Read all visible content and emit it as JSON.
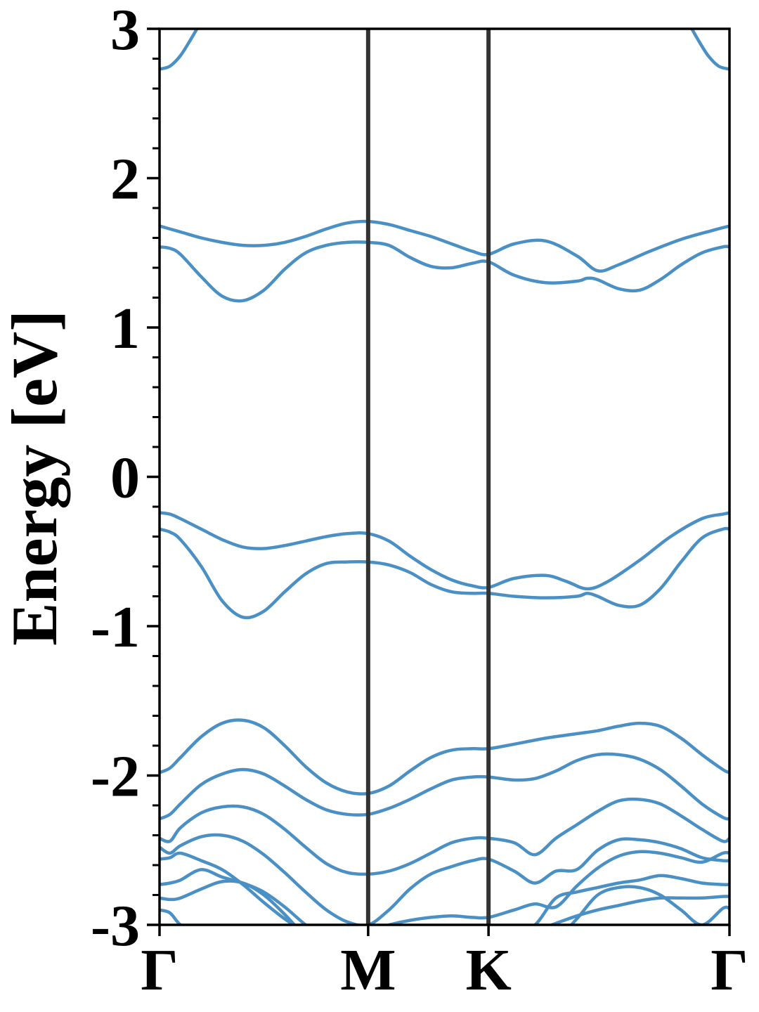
{
  "chart_data": {
    "type": "line",
    "title": "",
    "xlabel": "",
    "ylabel": "Energy [eV]",
    "ylim": [
      -3,
      3
    ],
    "yticks": [
      {
        "value": 3,
        "label": "3"
      },
      {
        "value": 2,
        "label": "2"
      },
      {
        "value": 1,
        "label": "1"
      },
      {
        "value": 0,
        "label": "0"
      },
      {
        "value": -1,
        "label": "-1"
      },
      {
        "value": -2,
        "label": "-2"
      },
      {
        "value": -3,
        "label": "-3"
      }
    ],
    "yminor_step": 0.2,
    "kpath": [
      {
        "label": "Γ",
        "k": 0.0
      },
      {
        "label": "M",
        "k": 1.0
      },
      {
        "label": "K",
        "k": 1.577
      },
      {
        "label": "Γ",
        "k": 2.732
      }
    ],
    "xlim": [
      0,
      2.732
    ],
    "line_color": "#4a90c4",
    "divider_color": "#333333",
    "grid": false,
    "legend": false,
    "series": [
      {
        "x": [
          0,
          0.1,
          0.2,
          0.3,
          0.4,
          0.5,
          0.6,
          0.7,
          0.8,
          0.9,
          1.0,
          1.1,
          1.2,
          1.3,
          1.4,
          1.5,
          1.577,
          1.7,
          1.85,
          2.0,
          2.1,
          2.2,
          2.35,
          2.5,
          2.65,
          2.732
        ],
        "y": [
          1.68,
          1.64,
          1.6,
          1.57,
          1.55,
          1.55,
          1.57,
          1.61,
          1.66,
          1.7,
          1.71,
          1.69,
          1.65,
          1.61,
          1.56,
          1.51,
          1.49,
          1.56,
          1.58,
          1.48,
          1.38,
          1.42,
          1.51,
          1.59,
          1.65,
          1.68
        ]
      },
      {
        "x": [
          0,
          0.05,
          0.1,
          0.2,
          0.3,
          0.4,
          0.5,
          0.6,
          0.7,
          0.8,
          0.9,
          1.0,
          1.1,
          1.2,
          1.3,
          1.4,
          1.5,
          1.577,
          1.7,
          1.85,
          2.0,
          2.05,
          2.1,
          2.2,
          2.3,
          2.4,
          2.5,
          2.6,
          2.7,
          2.732
        ],
        "y": [
          1.54,
          1.53,
          1.49,
          1.34,
          1.21,
          1.18,
          1.25,
          1.39,
          1.5,
          1.55,
          1.57,
          1.57,
          1.55,
          1.47,
          1.41,
          1.4,
          1.43,
          1.44,
          1.35,
          1.3,
          1.31,
          1.33,
          1.32,
          1.26,
          1.25,
          1.32,
          1.42,
          1.5,
          1.54,
          1.54
        ]
      },
      {
        "x": [
          0,
          0.05,
          0.1,
          0.2,
          0.3,
          0.4,
          0.5,
          0.6,
          0.7,
          0.8,
          0.9,
          1.0,
          1.1,
          1.2,
          1.3,
          1.4,
          1.5,
          1.577,
          1.7,
          1.85,
          1.95,
          2.05,
          2.15,
          2.3,
          2.45,
          2.6,
          2.7,
          2.732
        ],
        "y": [
          -0.24,
          -0.25,
          -0.28,
          -0.35,
          -0.42,
          -0.47,
          -0.48,
          -0.46,
          -0.43,
          -0.4,
          -0.38,
          -0.38,
          -0.43,
          -0.53,
          -0.62,
          -0.69,
          -0.73,
          -0.74,
          -0.68,
          -0.66,
          -0.7,
          -0.75,
          -0.7,
          -0.56,
          -0.4,
          -0.28,
          -0.25,
          -0.24
        ]
      },
      {
        "x": [
          0,
          0.05,
          0.1,
          0.2,
          0.3,
          0.4,
          0.5,
          0.6,
          0.7,
          0.8,
          0.9,
          1.0,
          1.1,
          1.2,
          1.3,
          1.4,
          1.5,
          1.577,
          1.7,
          1.85,
          2.0,
          2.05,
          2.1,
          2.2,
          2.3,
          2.4,
          2.5,
          2.6,
          2.7,
          2.732
        ],
        "y": [
          -0.35,
          -0.37,
          -0.42,
          -0.6,
          -0.83,
          -0.94,
          -0.9,
          -0.77,
          -0.65,
          -0.58,
          -0.57,
          -0.57,
          -0.59,
          -0.64,
          -0.72,
          -0.77,
          -0.78,
          -0.78,
          -0.8,
          -0.81,
          -0.8,
          -0.78,
          -0.8,
          -0.86,
          -0.86,
          -0.75,
          -0.57,
          -0.41,
          -0.35,
          -0.35
        ]
      },
      {
        "x": [
          0,
          0.05,
          0.1,
          0.2,
          0.3,
          0.4,
          0.5,
          0.6,
          0.7,
          0.8,
          0.9,
          1.0,
          1.1,
          1.2,
          1.3,
          1.4,
          1.5,
          1.577,
          1.7,
          1.85,
          2.0,
          2.1,
          2.2,
          2.3,
          2.4,
          2.5,
          2.6,
          2.7,
          2.732
        ],
        "y": [
          -1.98,
          -1.95,
          -1.88,
          -1.74,
          -1.65,
          -1.63,
          -1.68,
          -1.8,
          -1.94,
          -2.05,
          -2.11,
          -2.12,
          -2.07,
          -1.97,
          -1.88,
          -1.83,
          -1.82,
          -1.82,
          -1.79,
          -1.75,
          -1.72,
          -1.7,
          -1.67,
          -1.65,
          -1.67,
          -1.75,
          -1.86,
          -1.96,
          -1.98
        ]
      },
      {
        "x": [
          0,
          0.05,
          0.1,
          0.2,
          0.3,
          0.4,
          0.5,
          0.6,
          0.7,
          0.8,
          0.9,
          1.0,
          1.1,
          1.2,
          1.3,
          1.4,
          1.5,
          1.577,
          1.7,
          1.8,
          1.9,
          2.0,
          2.1,
          2.2,
          2.3,
          2.4,
          2.5,
          2.6,
          2.7,
          2.732
        ],
        "y": [
          -2.29,
          -2.26,
          -2.19,
          -2.06,
          -1.99,
          -1.96,
          -1.99,
          -2.07,
          -2.16,
          -2.23,
          -2.26,
          -2.26,
          -2.22,
          -2.16,
          -2.09,
          -2.03,
          -2.01,
          -2.01,
          -2.03,
          -2.02,
          -1.97,
          -1.9,
          -1.86,
          -1.86,
          -1.89,
          -1.96,
          -2.07,
          -2.19,
          -2.28,
          -2.29
        ]
      },
      {
        "x": [
          0,
          0.05,
          0.1,
          0.2,
          0.3,
          0.4,
          0.5,
          0.6,
          0.7,
          0.8,
          0.9,
          1.0,
          1.1,
          1.2,
          1.3,
          1.4,
          1.5,
          1.577,
          1.7,
          1.8,
          1.9,
          2.0,
          2.1,
          2.2,
          2.3,
          2.4,
          2.5,
          2.6,
          2.7,
          2.732
        ],
        "y": [
          -2.42,
          -2.44,
          -2.35,
          -2.25,
          -2.21,
          -2.21,
          -2.26,
          -2.36,
          -2.48,
          -2.59,
          -2.65,
          -2.66,
          -2.64,
          -2.59,
          -2.52,
          -2.45,
          -2.42,
          -2.42,
          -2.45,
          -2.53,
          -2.42,
          -2.33,
          -2.24,
          -2.17,
          -2.16,
          -2.19,
          -2.27,
          -2.36,
          -2.44,
          -2.42
        ]
      },
      {
        "x": [
          0,
          0.05,
          0.1,
          0.2,
          0.3,
          0.4,
          0.5,
          0.6,
          0.7,
          0.8,
          0.9,
          1.0,
          1.1,
          1.2,
          1.3,
          1.4,
          1.5,
          1.577,
          1.7,
          1.8,
          1.9,
          2.0,
          2.1,
          2.2,
          2.3,
          2.4,
          2.5,
          2.6,
          2.7,
          2.732
        ],
        "y": [
          -2.48,
          -2.52,
          -2.47,
          -2.41,
          -2.4,
          -2.44,
          -2.53,
          -2.65,
          -2.78,
          -2.9,
          -2.98,
          -3.0,
          -2.9,
          -2.76,
          -2.66,
          -2.61,
          -2.57,
          -2.56,
          -2.64,
          -2.72,
          -2.64,
          -2.63,
          -2.5,
          -2.43,
          -2.43,
          -2.45,
          -2.49,
          -2.55,
          -2.57,
          -2.57
        ]
      },
      {
        "x": [
          0,
          0.05,
          0.1,
          0.2,
          0.3,
          0.4,
          0.5,
          0.6,
          0.7,
          0.8,
          0.9,
          1.0,
          1.1,
          1.2,
          1.3,
          1.4,
          1.5,
          1.577,
          1.7,
          1.8,
          1.9,
          2.0,
          2.1,
          2.2,
          2.3,
          2.4,
          2.5,
          2.6,
          2.7,
          2.732
        ],
        "y": [
          -2.56,
          -2.55,
          -2.52,
          -2.57,
          -2.63,
          -2.73,
          -2.85,
          -2.96,
          -3.05,
          -3.1,
          -3.08,
          -3.04,
          -3.0,
          -2.97,
          -2.95,
          -2.94,
          -2.95,
          -2.95,
          -2.9,
          -2.86,
          -2.88,
          -2.74,
          -2.62,
          -2.54,
          -2.51,
          -2.52,
          -2.55,
          -2.58,
          -2.52,
          -2.52
        ]
      },
      {
        "x": [
          0,
          0.05,
          0.1,
          0.2,
          0.3,
          0.4,
          0.5,
          0.6,
          0.7,
          0.8,
          0.9,
          1.0,
          1.1,
          1.2,
          1.3,
          1.4,
          1.5,
          1.577,
          1.7,
          1.8,
          1.9,
          2.0,
          2.1,
          2.2,
          2.3,
          2.4,
          2.5,
          2.6,
          2.7,
          2.732
        ],
        "y": [
          -2.73,
          -2.72,
          -2.7,
          -2.63,
          -2.68,
          -2.72,
          -2.78,
          -2.88,
          -3.0,
          -3.1,
          -3.2,
          -3.25,
          -3.22,
          -3.18,
          -3.15,
          -3.12,
          -3.1,
          -3.1,
          -3.05,
          -3.0,
          -2.82,
          -2.78,
          -2.75,
          -2.72,
          -2.7,
          -2.67,
          -2.69,
          -2.72,
          -2.73,
          -2.73
        ]
      },
      {
        "x": [
          0,
          0.05,
          0.1,
          0.2,
          0.3,
          0.4,
          0.5,
          0.6,
          0.7,
          0.8,
          0.9,
          1.0,
          1.1,
          1.2,
          1.3,
          1.4,
          1.5,
          1.577,
          1.7,
          1.8,
          1.9,
          2.0,
          2.1,
          2.2,
          2.3,
          2.4,
          2.5,
          2.6,
          2.7,
          2.732
        ],
        "y": [
          -2.82,
          -2.83,
          -2.82,
          -2.76,
          -2.71,
          -2.72,
          -2.8,
          -2.93,
          -3.08,
          -3.2,
          -3.27,
          -3.29,
          -3.26,
          -3.22,
          -3.18,
          -3.15,
          -3.13,
          -3.13,
          -3.09,
          -3.04,
          -2.99,
          -2.94,
          -2.9,
          -2.87,
          -2.84,
          -2.82,
          -2.82,
          -2.82,
          -2.81,
          -2.81
        ]
      },
      {
        "x": [
          0,
          0.05,
          0.1,
          0.2,
          0.3,
          0.4,
          0.5,
          0.6,
          0.7,
          0.8,
          0.9,
          1.0,
          1.1,
          1.2,
          1.3,
          1.4,
          1.5,
          1.577,
          1.7,
          1.8,
          1.9,
          2.0,
          2.1,
          2.2,
          2.3,
          2.4,
          2.5,
          2.6,
          2.7,
          2.732
        ],
        "y": [
          -2.9,
          -2.92,
          -3.0,
          -3.1,
          -3.18,
          -3.22,
          -3.25,
          -3.27,
          -3.29,
          -3.3,
          -3.31,
          -3.31,
          -3.3,
          -3.28,
          -3.26,
          -3.24,
          -3.22,
          -3.22,
          -3.18,
          -3.14,
          -3.1,
          -2.96,
          -2.8,
          -2.75,
          -2.75,
          -2.8,
          -2.9,
          -3.0,
          -2.89,
          -2.89
        ]
      },
      {
        "x": [
          0,
          0.05,
          0.1,
          0.15,
          0.2
        ],
        "y": [
          2.73,
          2.75,
          2.82,
          2.93,
          3.05
        ]
      },
      {
        "x": [
          2.532,
          2.58,
          2.63,
          2.68,
          2.732
        ],
        "y": [
          3.05,
          2.93,
          2.82,
          2.75,
          2.73
        ]
      }
    ]
  }
}
